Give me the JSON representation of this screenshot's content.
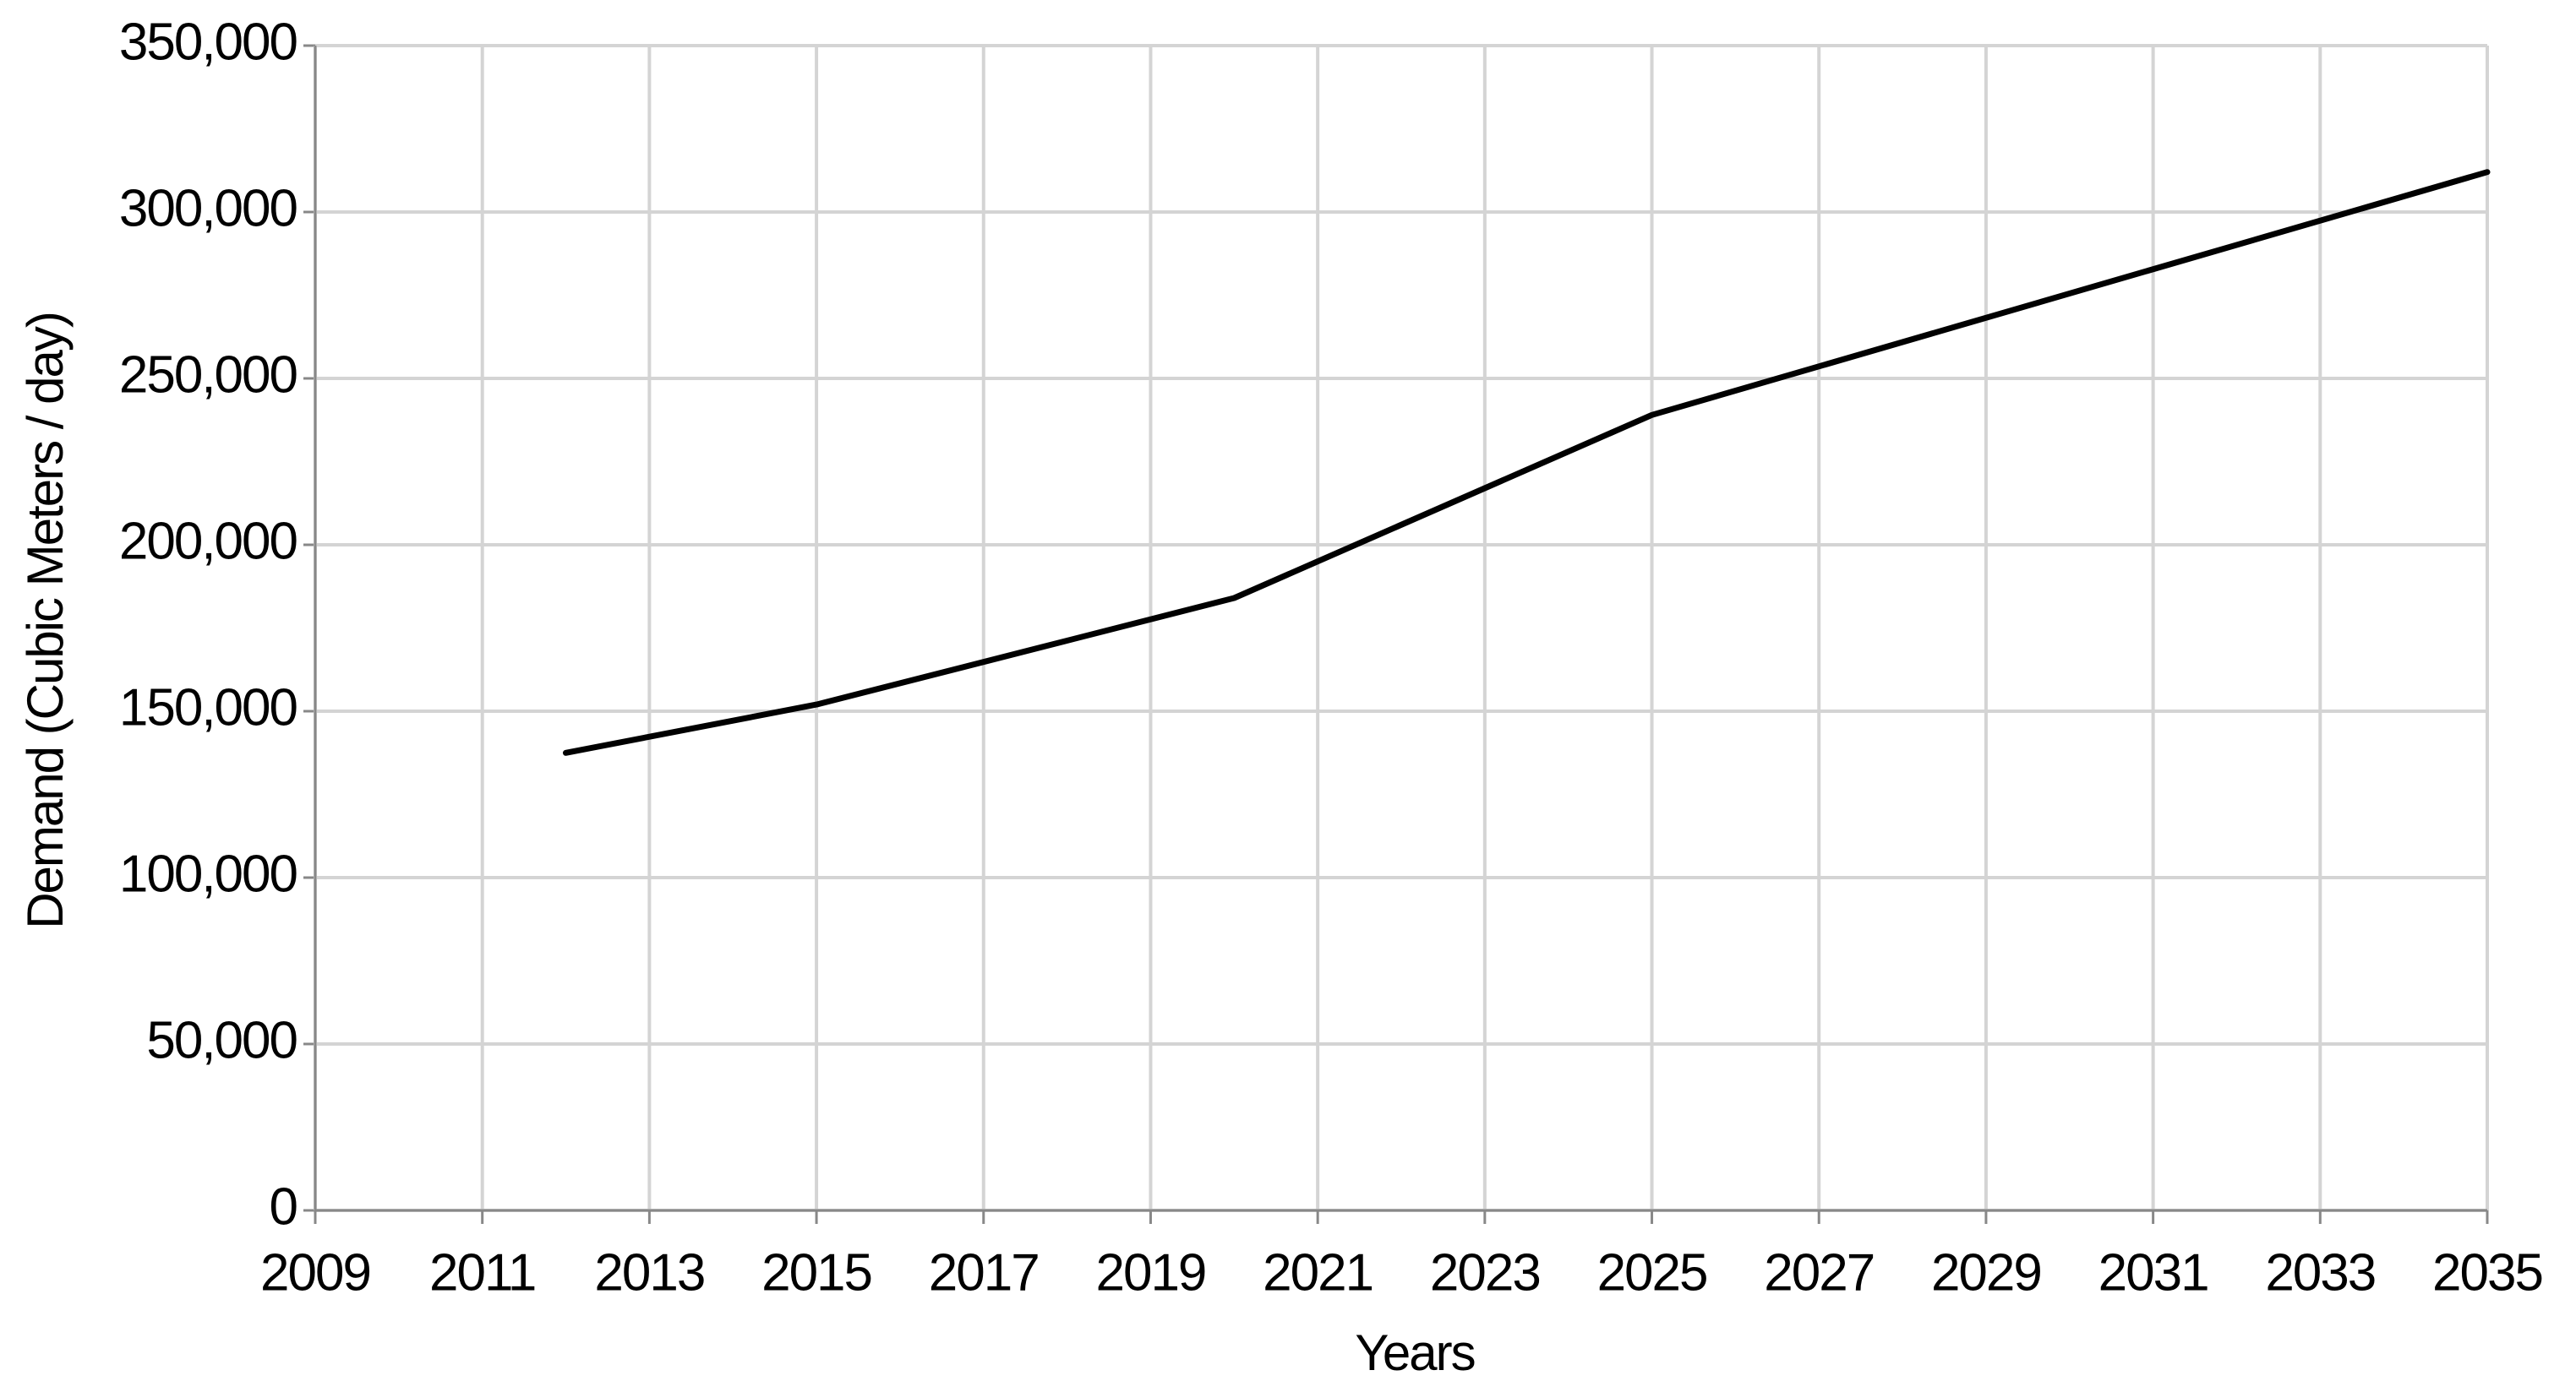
{
  "chart_data": {
    "type": "line",
    "x_label": "Years",
    "y_label": "Demand (Cubic Meters / day)",
    "x": [
      2012,
      2015,
      2020,
      2025,
      2035
    ],
    "values": [
      137500,
      152000,
      184000,
      239000,
      312000
    ],
    "color": "#000000",
    "xlim": [
      2009,
      2035
    ],
    "xticks": [
      2009,
      2011,
      2013,
      2015,
      2017,
      2019,
      2021,
      2023,
      2025,
      2027,
      2029,
      2031,
      2033,
      2035
    ],
    "ylim": [
      0,
      350000
    ],
    "yticks": [
      0,
      {
        "value": 50000,
        "label": "50,000"
      },
      {
        "value": 100000,
        "label": "100,000"
      },
      {
        "value": 150000,
        "label": "150,000"
      },
      {
        "value": 200000,
        "label": "200,000"
      },
      {
        "value": 250000,
        "label": "250,000"
      },
      {
        "value": 300000,
        "label": "300,000"
      },
      {
        "value": 350000,
        "label": "350,000"
      }
    ],
    "grid": true
  }
}
